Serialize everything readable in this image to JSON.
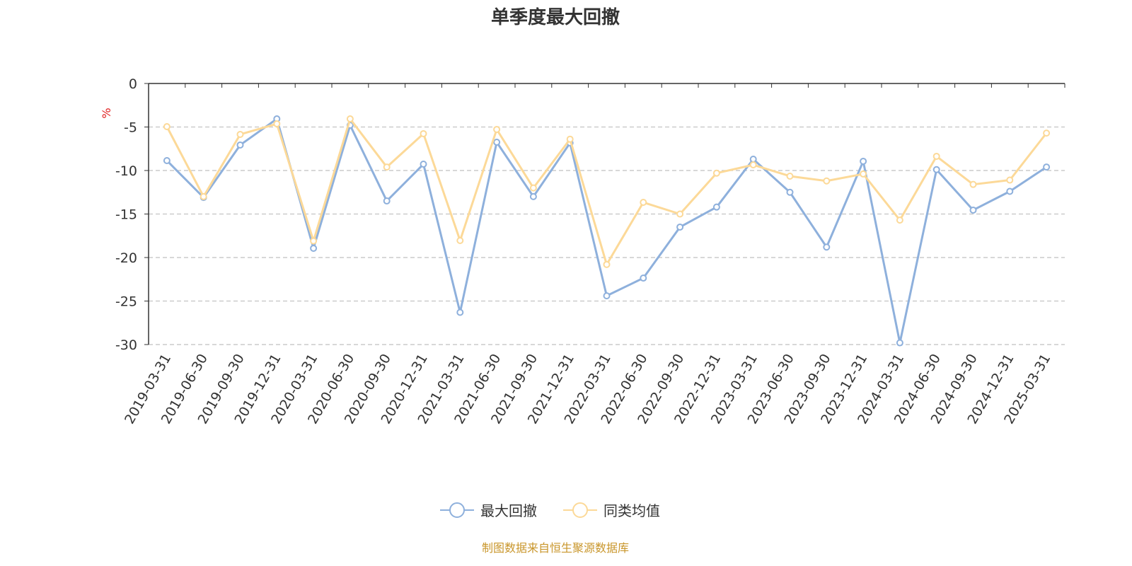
{
  "chart_data": {
    "type": "line",
    "title": "单季度最大回撤",
    "ylabel": "%",
    "xlabel": "",
    "ylim": [
      -30,
      0
    ],
    "yticks": [
      0,
      -5,
      -10,
      -15,
      -20,
      -25,
      -30
    ],
    "grid": true,
    "legend_position": "bottom",
    "categories": [
      "2019-03-31",
      "2019-06-30",
      "2019-09-30",
      "2019-12-31",
      "2020-03-31",
      "2020-06-30",
      "2020-09-30",
      "2020-12-31",
      "2021-03-31",
      "2021-06-30",
      "2021-09-30",
      "2021-12-31",
      "2022-03-31",
      "2022-06-30",
      "2022-09-30",
      "2022-12-31",
      "2023-03-31",
      "2023-06-30",
      "2023-09-30",
      "2023-12-31",
      "2024-03-31",
      "2024-06-30",
      "2024-09-30",
      "2024-12-31",
      "2025-03-31"
    ],
    "series": [
      {
        "name": "最大回撤",
        "color": "#8eb0dc",
        "values": [
          -8.86,
          -13.1,
          -7.07,
          -4.07,
          -18.94,
          -4.8,
          -13.5,
          -9.27,
          -26.3,
          -6.75,
          -13.0,
          -6.83,
          -24.4,
          -22.36,
          -16.5,
          -14.2,
          -8.7,
          -12.5,
          -18.8,
          -8.94,
          -29.8,
          -9.9,
          -14.55,
          -12.4,
          -9.6
        ]
      },
      {
        "name": "同类均值",
        "color": "#fcd998",
        "values": [
          -4.96,
          -13.0,
          -5.85,
          -4.63,
          -18.1,
          -4.07,
          -9.6,
          -5.77,
          -18.05,
          -5.28,
          -12.0,
          -6.4,
          -20.8,
          -13.66,
          -15.0,
          -10.3,
          -9.35,
          -10.65,
          -11.2,
          -10.4,
          -15.7,
          -8.37,
          -11.6,
          -11.1,
          -5.7
        ]
      }
    ]
  },
  "footer": "制图数据来自恒生聚源数据库"
}
